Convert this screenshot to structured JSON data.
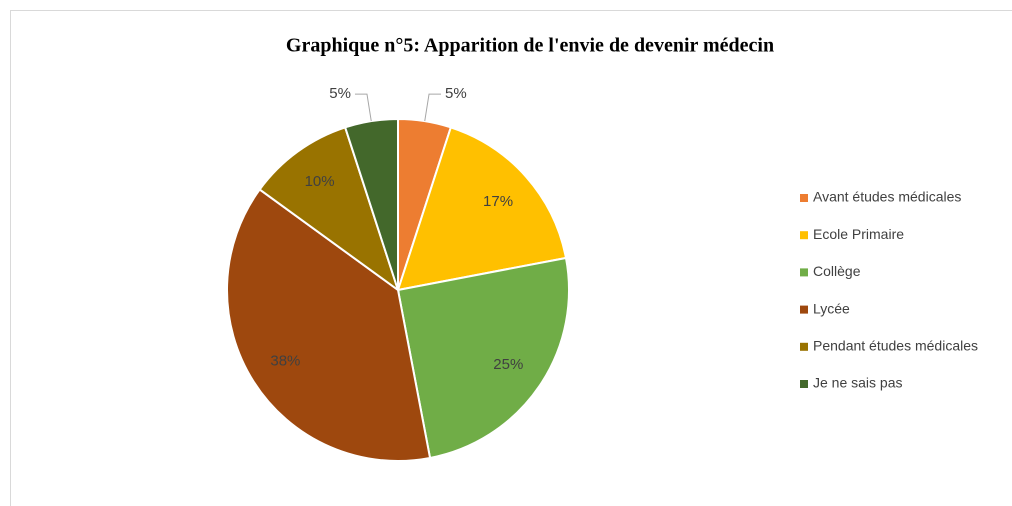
{
  "chart_data": {
    "type": "pie",
    "title": "Graphique n°5: Apparition de l'envie de devenir médecin",
    "categories": [
      "Avant études médicales",
      "Ecole Primaire",
      "Collège",
      "Lycée",
      "Pendant études médicales",
      "Je ne sais pas"
    ],
    "values": [
      5,
      17,
      25,
      38,
      10,
      5
    ],
    "value_labels": [
      "5%",
      "17%",
      "25%",
      "38%",
      "10%",
      "5%"
    ],
    "colors": [
      "#ed7d31",
      "#ffc000",
      "#70ad47",
      "#9e480e",
      "#997300",
      "#43682b"
    ],
    "legend": "right"
  }
}
